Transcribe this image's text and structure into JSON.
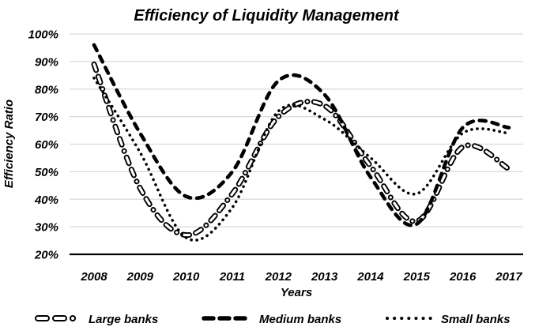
{
  "page": {
    "background": "#ffffff"
  },
  "chart_data": {
    "type": "line",
    "title": "Efficiency of Liquidity Management",
    "xlabel": "Years",
    "ylabel": "Efficiency Ratio",
    "x": [
      2008,
      2009,
      2010,
      2011,
      2012,
      2013,
      2014,
      2015,
      2016,
      2017
    ],
    "xtick_labels": [
      "2008",
      "2009",
      "2010",
      "2011",
      "2012",
      "2013",
      "2014",
      "2015",
      "2016",
      "2017"
    ],
    "ylim": [
      20,
      100
    ],
    "ytick_values": [
      20,
      30,
      40,
      50,
      60,
      70,
      80,
      90,
      100
    ],
    "ytick_labels": [
      "20%",
      "30%",
      "40%",
      "50%",
      "60%",
      "70%",
      "80%",
      "90%",
      "100%"
    ],
    "grid": true,
    "gridline_color": "#d9d9d9",
    "axis_color": "#000000",
    "line_color": "#000000",
    "text_color": "#000000",
    "legend_position": "bottom",
    "series": [
      {
        "name": "Large banks",
        "style": "hollow-dash-dot",
        "values": [
          89,
          44,
          27,
          42,
          70,
          74,
          52,
          32,
          59,
          51
        ]
      },
      {
        "name": "Medium banks",
        "style": "dash",
        "values": [
          96,
          64,
          41,
          50,
          83,
          78,
          48,
          31,
          66,
          66
        ]
      },
      {
        "name": "Small banks",
        "style": "dotted",
        "values": [
          84,
          57,
          26,
          37,
          72,
          69,
          55,
          42,
          64,
          64
        ]
      }
    ]
  }
}
